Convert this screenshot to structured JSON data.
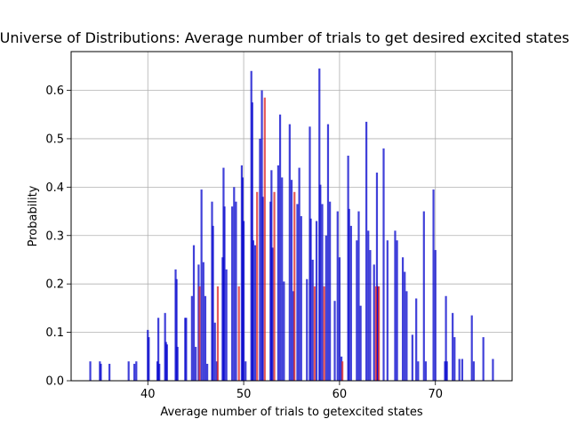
{
  "chart_data": {
    "type": "bar",
    "title": "Universe of Distributions: Average number of trials to get desired excited states",
    "xlabel": "Average number of trials to getexcited states",
    "ylabel": "Probability",
    "xlim": [
      32,
      78
    ],
    "ylim": [
      0,
      0.68
    ],
    "xticks": [
      40,
      50,
      60,
      70
    ],
    "yticks": [
      0.0,
      0.1,
      0.2,
      0.3,
      0.4,
      0.5,
      0.6
    ],
    "grid": true,
    "colors": {
      "blue": "#0000cc",
      "red": "#dd2222"
    },
    "series": [
      {
        "color": "blue",
        "points": [
          [
            34,
            0.04
          ],
          [
            35,
            0.04
          ],
          [
            35.1,
            0.035
          ],
          [
            36,
            0.035
          ],
          [
            38,
            0.04
          ],
          [
            38.6,
            0.035
          ],
          [
            38.8,
            0.04
          ],
          [
            40,
            0.105
          ],
          [
            40.1,
            0.09
          ],
          [
            41,
            0.04
          ],
          [
            41.1,
            0.13
          ],
          [
            41.2,
            0.035
          ],
          [
            41.8,
            0.14
          ],
          [
            41.9,
            0.08
          ],
          [
            42,
            0.075
          ],
          [
            42.9,
            0.23
          ],
          [
            43,
            0.21
          ],
          [
            43.1,
            0.07
          ],
          [
            43.9,
            0.13
          ],
          [
            44,
            0.13
          ],
          [
            44.6,
            0.175
          ],
          [
            44.8,
            0.28
          ],
          [
            45,
            0.07
          ],
          [
            45.3,
            0.24
          ],
          [
            45.6,
            0.395
          ],
          [
            45.8,
            0.245
          ],
          [
            46,
            0.175
          ],
          [
            46.2,
            0.035
          ],
          [
            46.7,
            0.37
          ],
          [
            46.8,
            0.32
          ],
          [
            47,
            0.12
          ],
          [
            47.2,
            0.04
          ],
          [
            47.8,
            0.255
          ],
          [
            47.9,
            0.44
          ],
          [
            48,
            0.36
          ],
          [
            48.2,
            0.23
          ],
          [
            48.8,
            0.36
          ],
          [
            49,
            0.4
          ],
          [
            49.2,
            0.37
          ],
          [
            49.8,
            0.445
          ],
          [
            49.9,
            0.42
          ],
          [
            50,
            0.33
          ],
          [
            50.2,
            0.04
          ],
          [
            50.8,
            0.64
          ],
          [
            50.9,
            0.575
          ],
          [
            51,
            0.29
          ],
          [
            51.2,
            0.28
          ],
          [
            51.7,
            0.5
          ],
          [
            51.9,
            0.6
          ],
          [
            52,
            0.38
          ],
          [
            52.8,
            0.37
          ],
          [
            52.9,
            0.435
          ],
          [
            53,
            0.275
          ],
          [
            53.6,
            0.445
          ],
          [
            53.8,
            0.55
          ],
          [
            54,
            0.42
          ],
          [
            54.2,
            0.205
          ],
          [
            54.8,
            0.53
          ],
          [
            55,
            0.415
          ],
          [
            55.2,
            0.185
          ],
          [
            55.6,
            0.365
          ],
          [
            55.8,
            0.44
          ],
          [
            56,
            0.34
          ],
          [
            56.6,
            0.21
          ],
          [
            56.9,
            0.525
          ],
          [
            57,
            0.335
          ],
          [
            57.2,
            0.25
          ],
          [
            57.6,
            0.33
          ],
          [
            57.9,
            0.645
          ],
          [
            58,
            0.405
          ],
          [
            58.2,
            0.365
          ],
          [
            58.6,
            0.3
          ],
          [
            58.8,
            0.53
          ],
          [
            59,
            0.37
          ],
          [
            59.5,
            0.165
          ],
          [
            59.8,
            0.35
          ],
          [
            60,
            0.255
          ],
          [
            60.2,
            0.05
          ],
          [
            60.9,
            0.465
          ],
          [
            61,
            0.355
          ],
          [
            61.2,
            0.32
          ],
          [
            61.8,
            0.29
          ],
          [
            62,
            0.35
          ],
          [
            62.2,
            0.155
          ],
          [
            62.8,
            0.535
          ],
          [
            63,
            0.31
          ],
          [
            63.2,
            0.27
          ],
          [
            63.6,
            0.24
          ],
          [
            63.9,
            0.43
          ],
          [
            64,
            0.195
          ],
          [
            64.6,
            0.48
          ],
          [
            65,
            0.29
          ],
          [
            65.8,
            0.31
          ],
          [
            66,
            0.29
          ],
          [
            66.6,
            0.255
          ],
          [
            66.8,
            0.225
          ],
          [
            67,
            0.185
          ],
          [
            67.6,
            0.095
          ],
          [
            68,
            0.17
          ],
          [
            68.2,
            0.04
          ],
          [
            68.8,
            0.35
          ],
          [
            69,
            0.04
          ],
          [
            69.8,
            0.395
          ],
          [
            70,
            0.27
          ],
          [
            71,
            0.04
          ],
          [
            71.1,
            0.175
          ],
          [
            71.2,
            0.04
          ],
          [
            71.8,
            0.14
          ],
          [
            72,
            0.09
          ],
          [
            72.5,
            0.045
          ],
          [
            72.8,
            0.045
          ],
          [
            73.8,
            0.135
          ],
          [
            74,
            0.04
          ],
          [
            75,
            0.09
          ],
          [
            76,
            0.045
          ]
        ]
      },
      {
        "color": "red",
        "points": [
          [
            45.4,
            0.195
          ],
          [
            47.3,
            0.195
          ],
          [
            49.5,
            0.195
          ],
          [
            51.4,
            0.39
          ],
          [
            52.2,
            0.585
          ],
          [
            53.2,
            0.39
          ],
          [
            55.3,
            0.39
          ],
          [
            57.4,
            0.195
          ],
          [
            58.4,
            0.195
          ],
          [
            60.3,
            0.04
          ],
          [
            63.8,
            0.195
          ],
          [
            64.1,
            0.195
          ]
        ]
      }
    ]
  }
}
